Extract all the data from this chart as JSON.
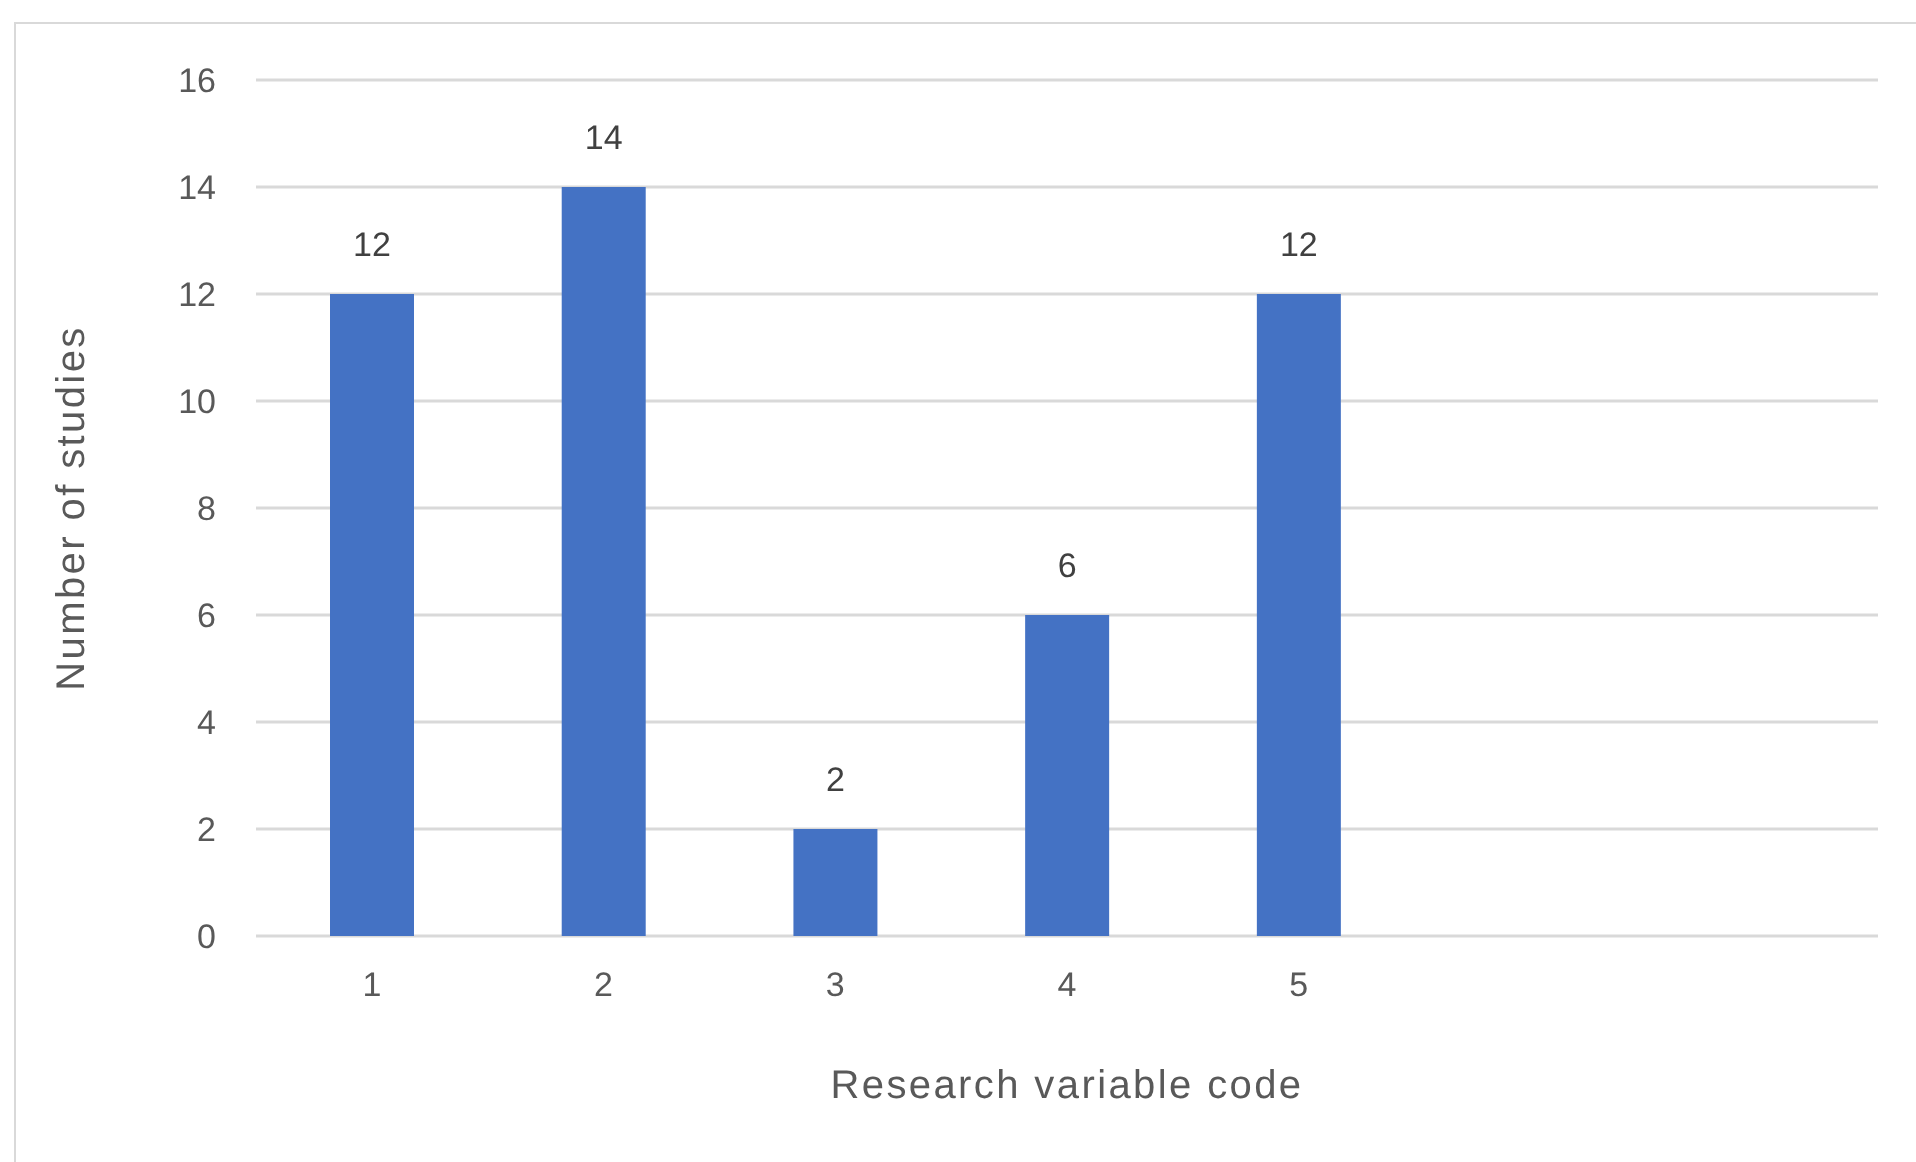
{
  "chart_data": {
    "type": "bar",
    "xlabel": "Research variable code",
    "ylabel": "Number of studies",
    "categories": [
      "1",
      "2",
      "3",
      "4",
      "5",
      null,
      null
    ],
    "values": [
      12,
      14,
      2,
      6,
      12,
      null,
      null
    ],
    "color": "#4472c4",
    "ylim": [
      0,
      16
    ],
    "yticks": [
      0,
      2,
      4,
      6,
      8,
      10,
      12,
      14,
      16
    ],
    "grid": "y",
    "data_labels": true
  }
}
